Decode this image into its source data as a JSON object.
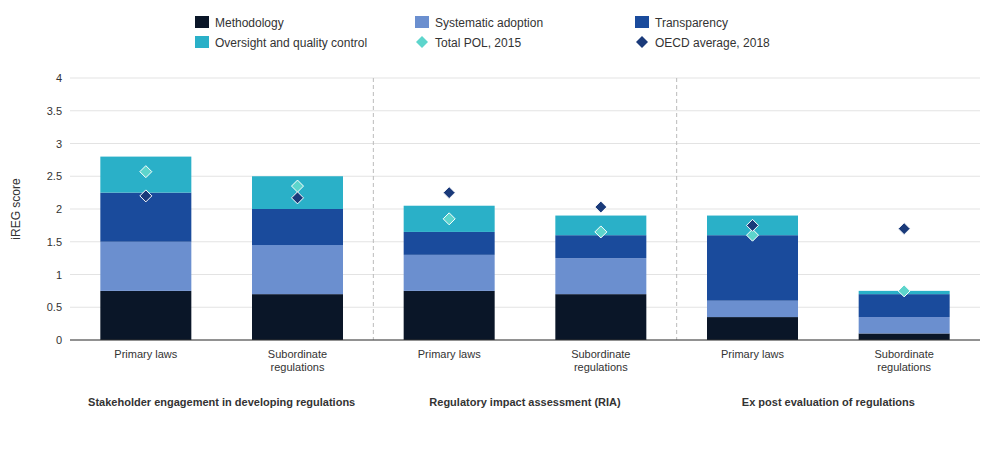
{
  "chart_data": {
    "type": "bar",
    "stacked": true,
    "categories": [
      "Primary laws",
      "Subordinate\nregulations",
      "Primary laws",
      "Subordinate\nregulations",
      "Primary laws",
      "Subordinate\nregulations"
    ],
    "group_labels": [
      "Stakeholder engagement in developing regulations",
      "Regulatory impact assessment (RIA)",
      "Ex post evaluation of regulations"
    ],
    "y_label": "iREG score",
    "series": [
      {
        "name": "Methodology",
        "type": "bar",
        "color": "#0a1628",
        "values": [
          0.75,
          0.7,
          0.75,
          0.7,
          0.35,
          0.1
        ]
      },
      {
        "name": "Systematic adoption",
        "type": "bar",
        "color": "#6b8fcf",
        "values": [
          0.75,
          0.75,
          0.55,
          0.55,
          0.25,
          0.25
        ]
      },
      {
        "name": "Transparency",
        "type": "bar",
        "color": "#1a4b9c",
        "values": [
          0.75,
          0.55,
          0.35,
          0.35,
          1.0,
          0.35
        ]
      },
      {
        "name": "Oversight and quality control",
        "type": "bar",
        "color": "#2ab0c8",
        "values": [
          0.55,
          0.5,
          0.4,
          0.3,
          0.3,
          0.05
        ]
      },
      {
        "name": "Total POL, 2015",
        "type": "scatter",
        "marker": "diamond",
        "color": "#5dd5cc",
        "values": [
          2.57,
          2.35,
          1.85,
          1.65,
          1.6,
          0.75
        ]
      },
      {
        "name": "OECD average, 2018",
        "type": "scatter",
        "marker": "diamond",
        "color": "#1a3a7a",
        "values": [
          2.2,
          2.17,
          2.25,
          2.03,
          1.75,
          1.7
        ]
      }
    ],
    "ylim": [
      0,
      4
    ],
    "yticks": [
      0,
      0.5,
      1,
      1.5,
      2,
      2.5,
      3,
      3.5,
      4
    ],
    "grid": true,
    "legend": "top"
  }
}
